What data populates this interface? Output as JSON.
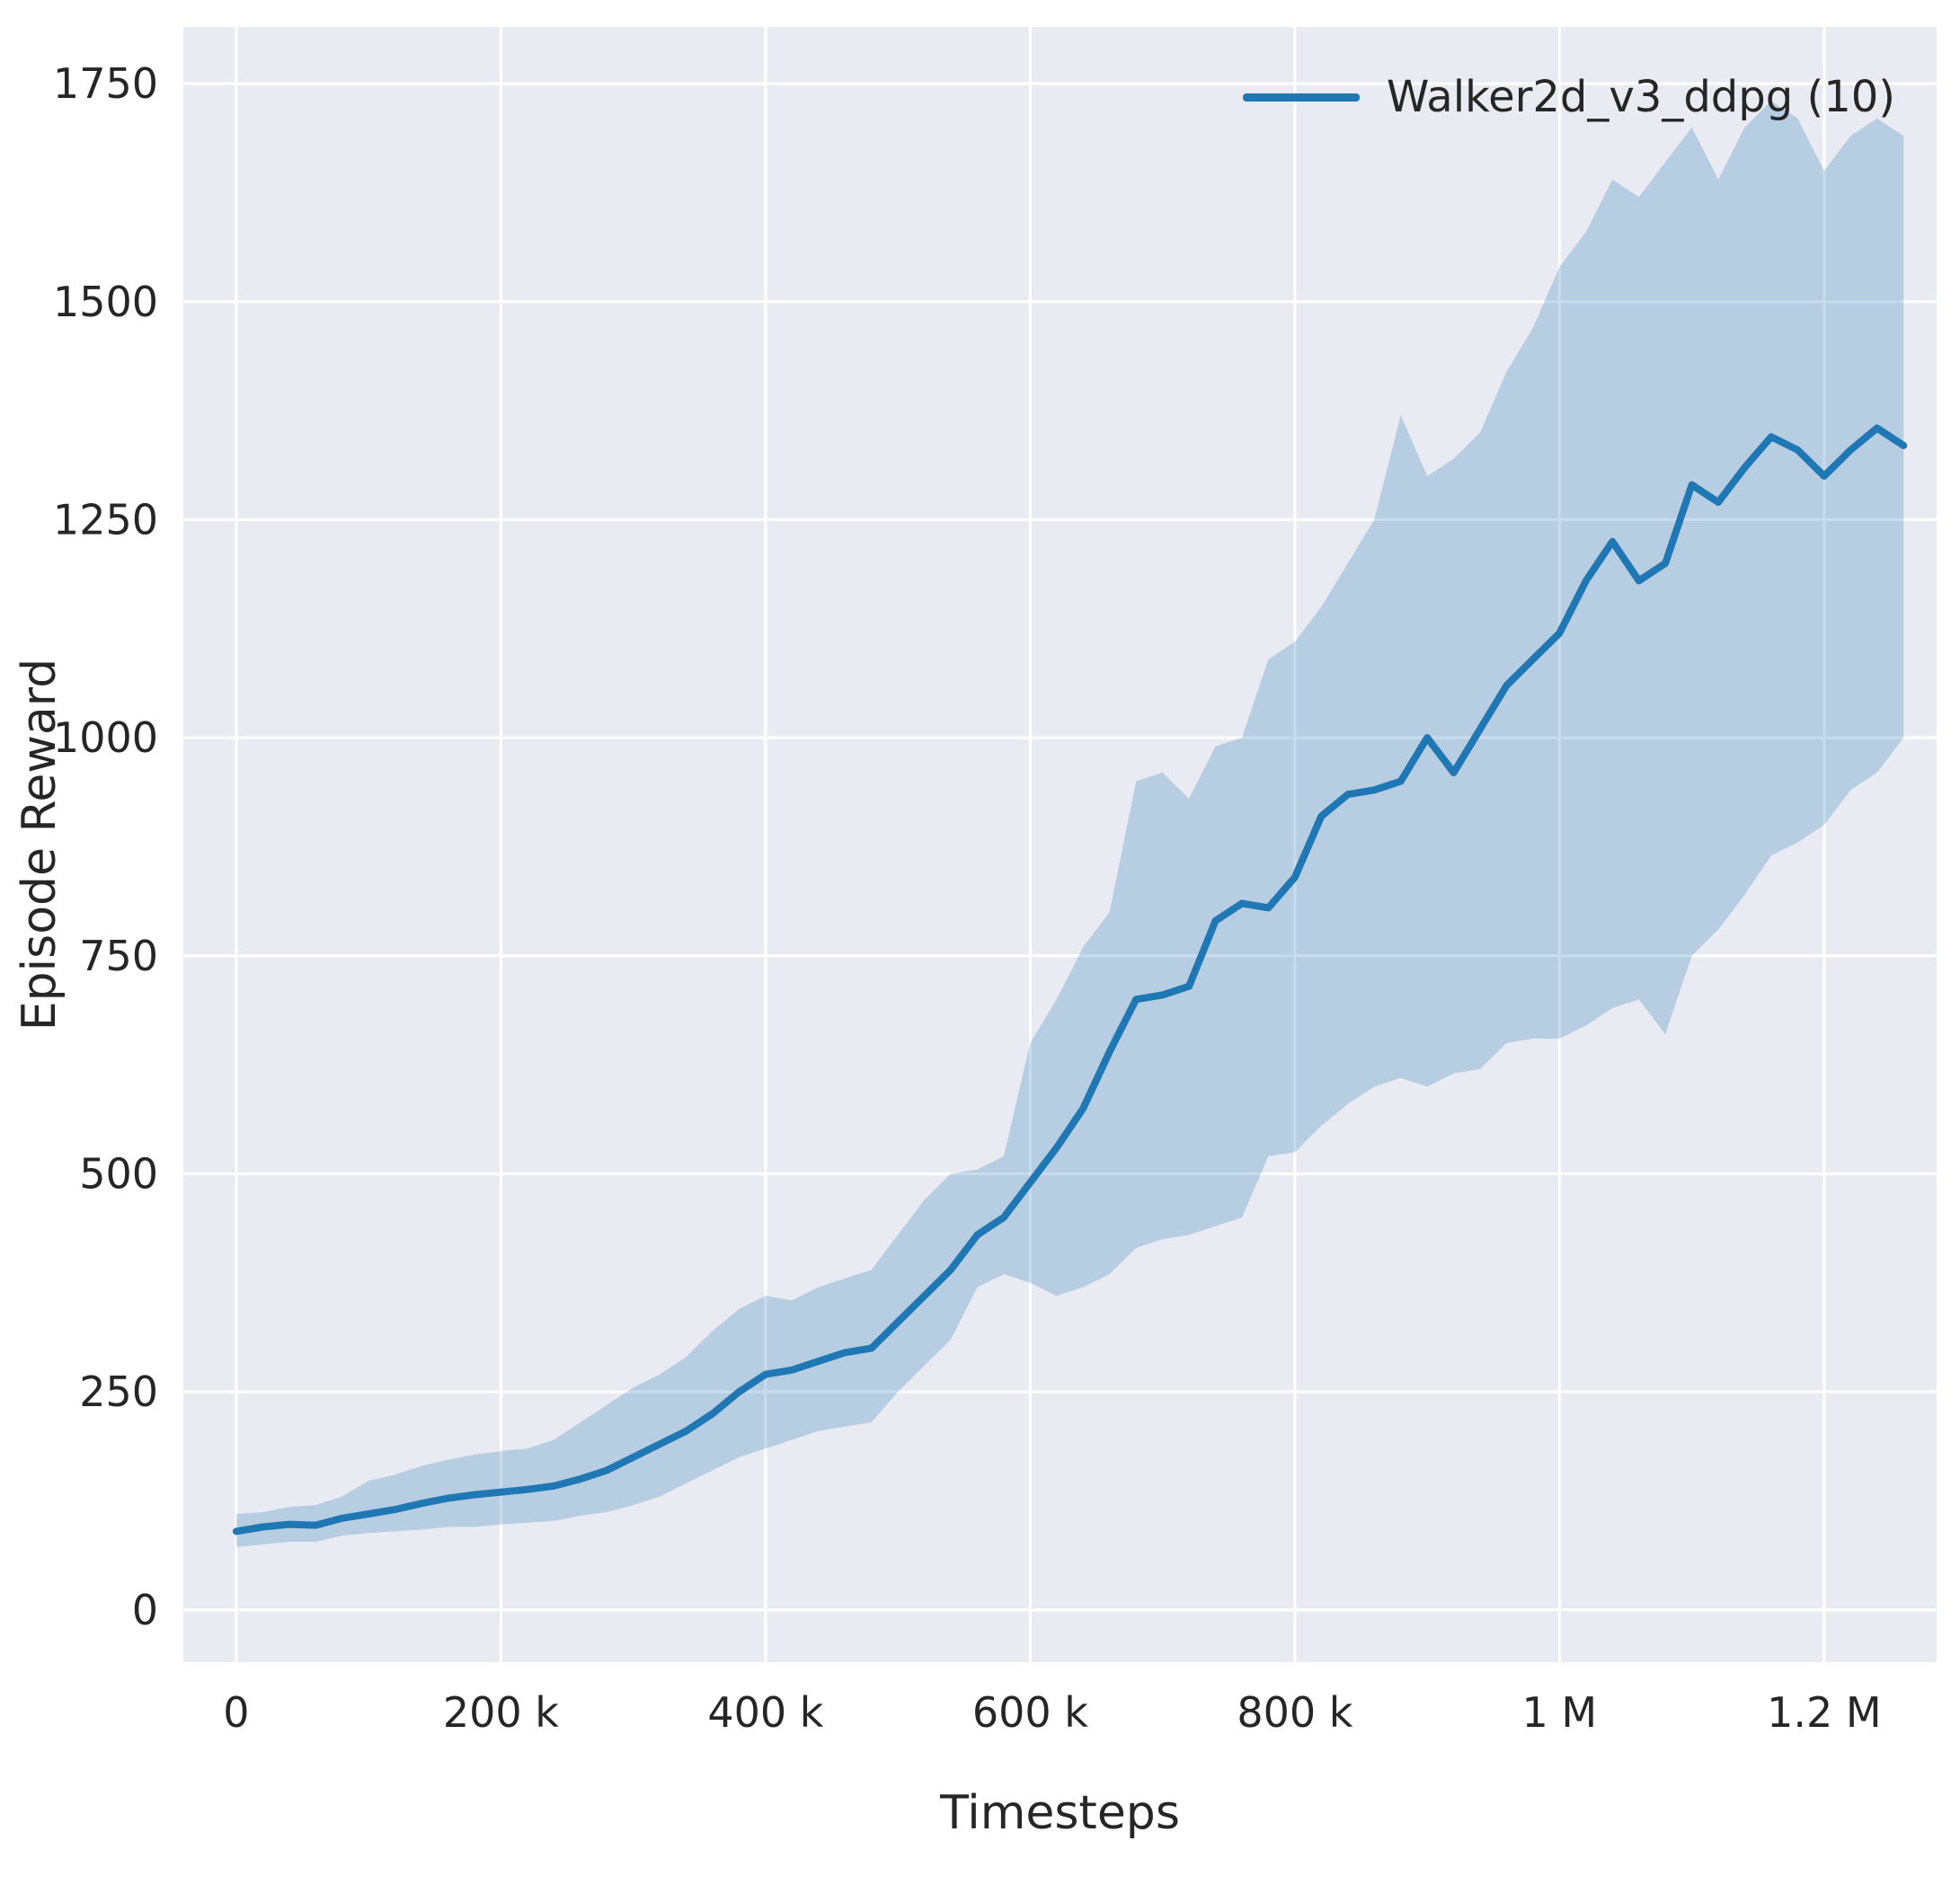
{
  "figure": {
    "background": "#ffffff",
    "axes_background": "#eaeaf2",
    "grid_color": "#ffffff",
    "line_color": "#1f77b4",
    "band_opacity": 0.25,
    "text_color": "#262626"
  },
  "chart_data": {
    "type": "line",
    "title": "",
    "xlabel": "Timesteps",
    "ylabel": "Episode Reward",
    "grid": true,
    "legend_position": "upper right",
    "legend": [
      {
        "label": "Walker2d_v3_ddpg (10)",
        "color": "#1f77b4"
      }
    ],
    "xlim": [
      -40000,
      1285000
    ],
    "ylim": [
      -60,
      1815
    ],
    "xticks": [
      {
        "value": 0,
        "label": "0"
      },
      {
        "value": 200000,
        "label": "200 k"
      },
      {
        "value": 400000,
        "label": "400 k"
      },
      {
        "value": 600000,
        "label": "600 k"
      },
      {
        "value": 800000,
        "label": "800 k"
      },
      {
        "value": 1000000,
        "label": "1 M"
      },
      {
        "value": 1200000,
        "label": "1.2 M"
      }
    ],
    "yticks": [
      {
        "value": 0,
        "label": "0"
      },
      {
        "value": 250,
        "label": "250"
      },
      {
        "value": 500,
        "label": "500"
      },
      {
        "value": 750,
        "label": "750"
      },
      {
        "value": 1000,
        "label": "1000"
      },
      {
        "value": 1250,
        "label": "1250"
      },
      {
        "value": 1500,
        "label": "1500"
      },
      {
        "value": 1750,
        "label": "1750"
      }
    ],
    "series": [
      {
        "name": "Walker2d_v3_ddpg (10)",
        "x": [
          0,
          20000,
          40000,
          60000,
          80000,
          100000,
          120000,
          140000,
          160000,
          180000,
          200000,
          220000,
          240000,
          260000,
          280000,
          300000,
          320000,
          340000,
          360000,
          380000,
          400000,
          420000,
          440000,
          460000,
          480000,
          500000,
          520000,
          540000,
          560000,
          580000,
          600000,
          620000,
          640000,
          660000,
          680000,
          700000,
          720000,
          740000,
          760000,
          780000,
          800000,
          820000,
          840000,
          860000,
          880000,
          900000,
          920000,
          940000,
          960000,
          980000,
          1000000,
          1020000,
          1040000,
          1060000,
          1080000,
          1100000,
          1120000,
          1140000,
          1160000,
          1180000,
          1200000,
          1220000,
          1240000,
          1260000
        ],
        "mean": [
          90,
          95,
          98,
          97,
          105,
          110,
          115,
          122,
          128,
          132,
          135,
          138,
          142,
          150,
          160,
          175,
          190,
          205,
          225,
          250,
          270,
          275,
          285,
          295,
          300,
          330,
          360,
          390,
          430,
          450,
          490,
          530,
          575,
          640,
          700,
          705,
          715,
          790,
          810,
          805,
          840,
          910,
          935,
          940,
          950,
          1000,
          960,
          1010,
          1060,
          1090,
          1120,
          1180,
          1225,
          1180,
          1200,
          1290,
          1270,
          1310,
          1345,
          1330,
          1300,
          1330,
          1355,
          1335
        ],
        "lower": [
          72,
          75,
          78,
          78,
          85,
          88,
          90,
          92,
          95,
          95,
          98,
          100,
          102,
          108,
          112,
          120,
          130,
          145,
          160,
          175,
          185,
          195,
          205,
          210,
          215,
          250,
          280,
          310,
          370,
          385,
          375,
          360,
          370,
          385,
          415,
          425,
          430,
          440,
          450,
          520,
          525,
          555,
          580,
          600,
          610,
          600,
          615,
          620,
          650,
          655,
          655,
          670,
          690,
          700,
          660,
          750,
          780,
          820,
          865,
          880,
          900,
          940,
          960,
          1000
        ],
        "upper": [
          110,
          112,
          118,
          120,
          130,
          148,
          155,
          165,
          172,
          178,
          182,
          185,
          195,
          215,
          235,
          255,
          270,
          290,
          320,
          345,
          360,
          355,
          370,
          380,
          390,
          430,
          470,
          500,
          505,
          520,
          650,
          700,
          760,
          800,
          950,
          960,
          930,
          990,
          1000,
          1090,
          1110,
          1150,
          1200,
          1250,
          1370,
          1300,
          1320,
          1350,
          1420,
          1470,
          1540,
          1580,
          1640,
          1620,
          1660,
          1700,
          1640,
          1700,
          1730,
          1710,
          1650,
          1690,
          1710,
          1690
        ]
      }
    ]
  }
}
